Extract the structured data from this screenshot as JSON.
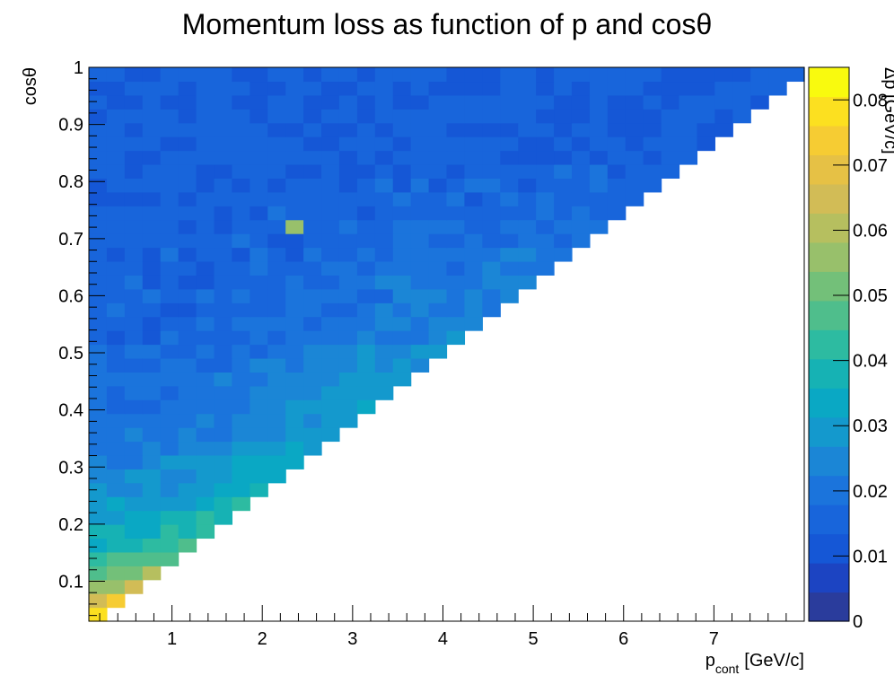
{
  "chart_data": {
    "type": "heatmap",
    "title": "Momentum loss as function of p and cosθ",
    "xlabel_main": "p",
    "xlabel_sub": "cont",
    "xlabel_unit": "[GeV/c]",
    "ylabel": "cosθ",
    "zlabel": "Δp [GeV/c]",
    "xlim": [
      0.08,
      8.0
    ],
    "ylim": [
      0.03,
      1.0
    ],
    "zlim": [
      0,
      0.085
    ],
    "x_ticks": [
      "1",
      "2",
      "3",
      "4",
      "5",
      "6",
      "7"
    ],
    "y_ticks": [
      "0.1",
      "0.2",
      "0.3",
      "0.4",
      "0.5",
      "0.6",
      "0.7",
      "0.8",
      "0.9",
      "1"
    ],
    "z_ticks": [
      "0",
      "0.01",
      "0.02",
      "0.03",
      "0.04",
      "0.05",
      "0.06",
      "0.07",
      "0.08"
    ],
    "x_bins": 40,
    "y_bins": 40,
    "coverage": "cells with p below roughly 8 * cosθ are filled; the region to the lower right is empty",
    "value_pattern": "about 0.075-0.085 near p < 0.5 and cosθ < 0.3, about 0.045-0.055 along the diagonal edge at mid cosθ, about 0.01-0.015 for cosθ > 0.7",
    "palette": [
      "#2a3c9c",
      "#1c44c2",
      "#1557d6",
      "#1865db",
      "#1b74dc",
      "#1b86d6",
      "#1499cd",
      "#0aa8c4",
      "#16b2b4",
      "#2dbba1",
      "#4fbe8c",
      "#73c079",
      "#98c06b",
      "#b6bf5f",
      "#d2bc56",
      "#e6c145",
      "#f6cc33",
      "#fce020",
      "#f9fa0e"
    ]
  }
}
